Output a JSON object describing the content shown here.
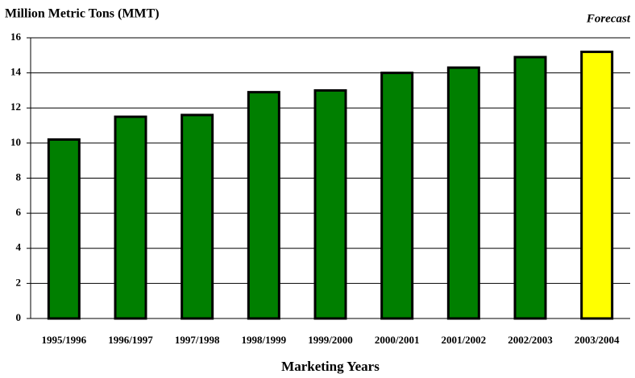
{
  "chart_data": {
    "type": "bar",
    "title": "Million Metric Tons (MMT)",
    "annotation": "Forecast",
    "xlabel": "Marketing Years",
    "categories": [
      "1995/1996",
      "1996/1997",
      "1997/1998",
      "1998/1999",
      "1999/2000",
      "2000/2001",
      "2001/2002",
      "2002/2003",
      "2003/2004"
    ],
    "values": [
      10.2,
      11.5,
      11.6,
      12.9,
      13.0,
      14.0,
      14.3,
      14.9,
      15.2
    ],
    "colors": [
      "#007f00",
      "#007f00",
      "#007f00",
      "#007f00",
      "#007f00",
      "#007f00",
      "#007f00",
      "#007f00",
      "#ffff00"
    ],
    "ylim": [
      0,
      16
    ],
    "yticks": [
      0,
      2,
      4,
      6,
      8,
      10,
      12,
      14,
      16
    ],
    "grid": true
  }
}
